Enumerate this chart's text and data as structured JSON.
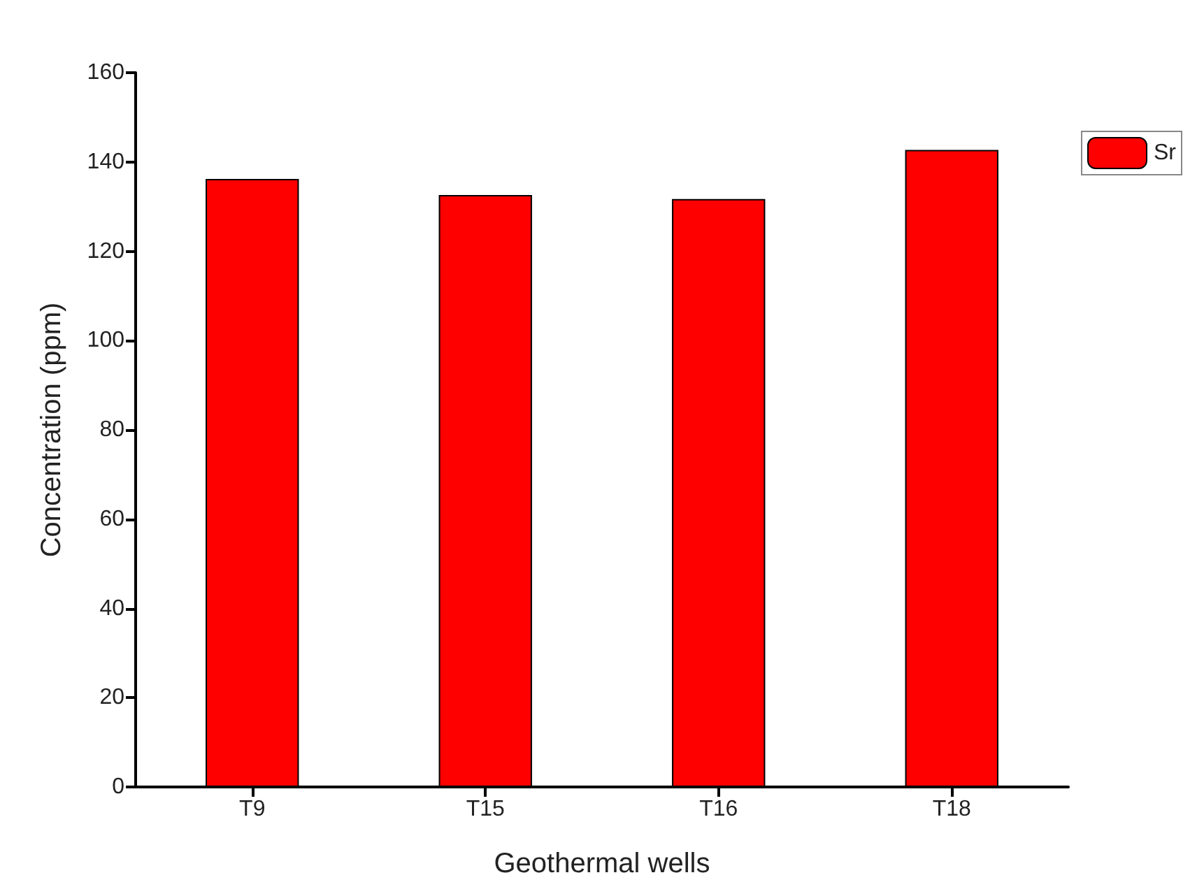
{
  "chart_data": {
    "type": "bar",
    "xlabel": "Geothermal wells",
    "ylabel": "Concentration (ppm)",
    "categories": [
      "T9",
      "T15",
      "T16",
      "T18"
    ],
    "series": [
      {
        "name": "Sr",
        "color": "#ff0000",
        "values": [
          136.2,
          132.6,
          131.7,
          142.7
        ]
      }
    ],
    "ylim": [
      0,
      160
    ],
    "yticks": [
      0,
      20,
      40,
      60,
      80,
      100,
      120,
      140,
      160
    ],
    "grid": false,
    "legend": "top right"
  }
}
